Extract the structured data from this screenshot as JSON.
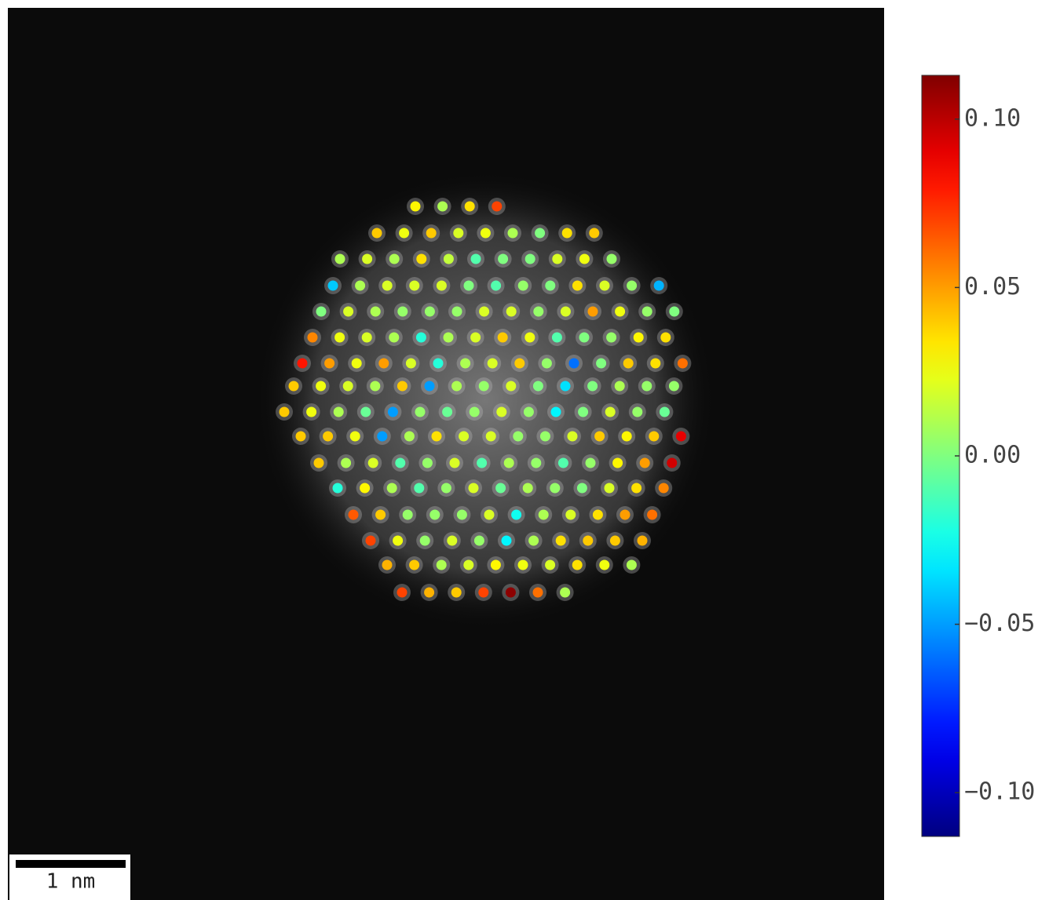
{
  "chart_data": {
    "type": "atom-map",
    "colormap": "jet",
    "clim": [
      -0.113,
      0.113
    ],
    "cticks": [
      {
        "value": 0.1,
        "label": "0.10"
      },
      {
        "value": 0.05,
        "label": "0.05"
      },
      {
        "value": 0,
        "label": "0.00"
      },
      {
        "value": -0.05,
        "label": "−0.05"
      },
      {
        "value": -0.1,
        "label": "−0.10"
      }
    ],
    "scale_bar_label": "1 nm",
    "rows": [
      [
        0.03,
        0.01,
        0.035,
        0.07
      ],
      [
        0.04,
        0.025,
        0.04,
        0.02,
        0.025,
        0.01,
        0.0,
        0.035,
        0.04
      ],
      [
        0.01,
        0.02,
        0.01,
        0.035,
        0.015,
        -0.01,
        0.0,
        0.0,
        0.02,
        0.025,
        0.005
      ],
      [
        -0.04,
        0.01,
        0.02,
        0.02,
        0.02,
        0.0,
        -0.01,
        0.005,
        0.0,
        0.035,
        0.02,
        0.005,
        -0.045
      ],
      [
        0.0,
        0.02,
        0.01,
        0.005,
        0.005,
        0.005,
        0.02,
        0.02,
        0.005,
        0.02,
        0.05,
        0.025,
        0.005,
        0.0
      ],
      [
        0.055,
        0.025,
        0.02,
        0.01,
        -0.02,
        0.01,
        0.02,
        0.04,
        0.025,
        -0.01,
        0.0,
        0.005,
        0.03,
        0.035
      ],
      [
        0.08,
        0.05,
        0.025,
        0.05,
        0.02,
        -0.02,
        0.01,
        0.02,
        0.04,
        0.005,
        -0.06,
        0.0,
        0.04,
        0.035,
        0.06
      ],
      [
        0.04,
        0.025,
        0.02,
        0.01,
        0.04,
        -0.05,
        0.01,
        0.005,
        0.02,
        0.0,
        -0.035,
        0.0,
        0.01,
        0.005,
        0.005
      ],
      [
        0.04,
        0.025,
        0.01,
        -0.005,
        -0.05,
        0.005,
        -0.005,
        0.005,
        0.02,
        0.005,
        -0.03,
        0.0,
        0.02,
        0.005,
        -0.005
      ],
      [
        0.04,
        0.04,
        0.025,
        -0.05,
        0.01,
        0.035,
        0.02,
        0.02,
        0.005,
        0.005,
        0.02,
        0.04,
        0.03,
        0.04,
        0.09
      ],
      [
        0.04,
        0.01,
        0.02,
        -0.01,
        0.005,
        0.02,
        -0.01,
        0.01,
        0.005,
        -0.01,
        0.005,
        0.03,
        0.05,
        0.095
      ],
      [
        -0.02,
        0.03,
        0.01,
        -0.01,
        0.005,
        0.02,
        -0.005,
        0.01,
        0.005,
        0.0,
        0.02,
        0.035,
        0.055
      ],
      [
        0.065,
        0.04,
        0.005,
        0.005,
        0.005,
        0.02,
        -0.025,
        0.01,
        0.02,
        0.035,
        0.05,
        0.06
      ],
      [
        0.07,
        0.025,
        0.005,
        0.02,
        0.005,
        -0.03,
        0.01,
        0.035,
        0.04,
        0.04,
        0.045
      ],
      [
        0.045,
        0.04,
        0.01,
        0.02,
        0.03,
        0.025,
        0.02,
        0.035,
        0.025,
        0.01
      ],
      [
        0.07,
        0.045,
        0.04,
        0.07,
        0.11,
        0.06,
        0.01
      ]
    ]
  }
}
